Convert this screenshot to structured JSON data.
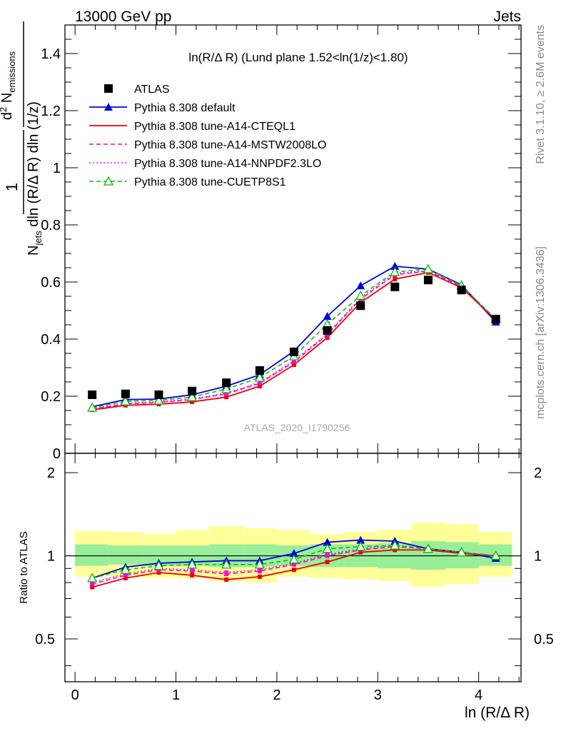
{
  "header": {
    "left": "13000 GeV pp",
    "right": "Jets",
    "side_top": "Rivet 3.1.10, ≥ 2.6M events",
    "side_bottom": "mcplots.cern.ch [arXiv:1306.3436]",
    "watermark": "ATLAS_2020_I1790256"
  },
  "chart_data": [
    {
      "type": "line",
      "panel": "main",
      "title": "ln(R/Δ R) (Lund plane 1.52<ln(1/z)<1.80)",
      "xlabel": "",
      "ylabel": "1/N_jets d²N_emissions / dln(R/Δ R) dln(1/z)",
      "xlim": [
        -0.1,
        4.42
      ],
      "ylim": [
        0,
        1.5
      ],
      "yticks": [
        "0",
        "0.2",
        "0.4",
        "0.6",
        "0.8",
        "1",
        "1.2",
        "1.4"
      ],
      "x": [
        0.17,
        0.5,
        0.83,
        1.16,
        1.5,
        1.83,
        2.17,
        2.5,
        2.83,
        3.17,
        3.5,
        3.83,
        4.17
      ],
      "legend_position": "top-left",
      "series": [
        {
          "name": "ATLAS",
          "color": "#000000",
          "marker": "square",
          "line": "none",
          "values": [
            0.205,
            0.208,
            0.205,
            0.218,
            0.247,
            0.29,
            0.355,
            0.43,
            0.517,
            0.583,
            0.607,
            0.572,
            0.47
          ]
        },
        {
          "name": "Pythia 8.308 default",
          "color": "#0000dd",
          "marker": "triangle",
          "line": "solid",
          "values": [
            0.163,
            0.188,
            0.19,
            0.205,
            0.235,
            0.275,
            0.358,
            0.48,
            0.587,
            0.655,
            0.645,
            0.59,
            0.46
          ]
        },
        {
          "name": "Pythia 8.308 tune-A14-CTEQL1",
          "color": "#ee0000",
          "marker": "square-small",
          "line": "solid",
          "values": [
            0.152,
            0.168,
            0.172,
            0.18,
            0.197,
            0.235,
            0.31,
            0.405,
            0.528,
            0.61,
            0.633,
            0.58,
            0.468
          ]
        },
        {
          "name": "Pythia 8.308 tune-A14-MSTW2008LO",
          "color": "#ee00aa",
          "marker": "square-small",
          "line": "dashed",
          "values": [
            0.155,
            0.173,
            0.178,
            0.188,
            0.208,
            0.245,
            0.32,
            0.415,
            0.54,
            0.625,
            0.638,
            0.585,
            0.47
          ]
        },
        {
          "name": "Pythia 8.308 tune-A14-NNPDF2.3LO",
          "color": "#ff00ee",
          "marker": "square-small",
          "line": "dotted",
          "values": [
            0.157,
            0.175,
            0.181,
            0.19,
            0.211,
            0.248,
            0.325,
            0.418,
            0.545,
            0.63,
            0.64,
            0.586,
            0.47
          ]
        },
        {
          "name": "Pythia 8.308 tune-CUETP8S1",
          "color": "#00bb00",
          "marker": "triangle-open",
          "line": "dashed",
          "values": [
            0.16,
            0.182,
            0.185,
            0.197,
            0.225,
            0.265,
            0.34,
            0.452,
            0.552,
            0.635,
            0.645,
            0.588,
            0.47
          ]
        }
      ]
    },
    {
      "type": "line",
      "panel": "ratio",
      "xlabel": "ln (R/Δ R)",
      "ylabel": "Ratio to ATLAS",
      "xlim": [
        -0.1,
        4.42
      ],
      "ylim": [
        0.35,
        2.35
      ],
      "log_y": true,
      "xticks": [
        "0",
        "1",
        "2",
        "3",
        "4"
      ],
      "yticks": [
        "0.5",
        "1",
        "2"
      ],
      "reference_line": 1,
      "x": [
        0.17,
        0.5,
        0.83,
        1.16,
        1.5,
        1.83,
        2.17,
        2.5,
        2.83,
        3.17,
        3.5,
        3.83,
        4.17
      ],
      "bin_edges": [
        0.0,
        0.33,
        0.67,
        1.0,
        1.33,
        1.67,
        2.0,
        2.33,
        2.67,
        3.0,
        3.33,
        3.67,
        4.0,
        4.33
      ],
      "band_outer": {
        "color": "#ffff99",
        "low": [
          0.84,
          0.84,
          0.83,
          0.83,
          0.81,
          0.8,
          0.84,
          0.83,
          0.82,
          0.81,
          0.77,
          0.79,
          0.84
        ],
        "high": [
          1.23,
          1.22,
          1.2,
          1.24,
          1.28,
          1.26,
          1.24,
          1.2,
          1.22,
          1.24,
          1.32,
          1.3,
          1.22
        ]
      },
      "band_inner": {
        "color": "#99ee99",
        "low": [
          0.92,
          0.93,
          0.92,
          0.92,
          0.91,
          0.91,
          0.92,
          0.91,
          0.91,
          0.9,
          0.89,
          0.9,
          0.92
        ],
        "high": [
          1.1,
          1.09,
          1.09,
          1.09,
          1.1,
          1.1,
          1.09,
          1.1,
          1.1,
          1.11,
          1.13,
          1.12,
          1.1
        ]
      },
      "series": [
        {
          "name": "Pythia 8.308 default",
          "color": "#0000dd",
          "marker": "triangle",
          "line": "solid",
          "values": [
            0.83,
            0.91,
            0.94,
            0.95,
            0.96,
            0.96,
            1.02,
            1.12,
            1.14,
            1.13,
            1.06,
            1.03,
            0.98
          ]
        },
        {
          "name": "Pythia 8.308 tune-A14-CTEQL1",
          "color": "#ee0000",
          "marker": "square-small",
          "line": "solid",
          "values": [
            0.77,
            0.83,
            0.87,
            0.85,
            0.82,
            0.84,
            0.89,
            0.95,
            1.03,
            1.05,
            1.05,
            1.02,
            1.0
          ]
        },
        {
          "name": "Pythia 8.308 tune-A14-MSTW2008LO",
          "color": "#ee00aa",
          "marker": "square-small",
          "line": "dashed",
          "values": [
            0.79,
            0.85,
            0.89,
            0.88,
            0.86,
            0.88,
            0.93,
            1.0,
            1.05,
            1.08,
            1.06,
            1.03,
            1.0
          ]
        },
        {
          "name": "Pythia 8.308 tune-A14-NNPDF2.3LO",
          "color": "#ff00ee",
          "marker": "square-small",
          "line": "dotted",
          "values": [
            0.8,
            0.86,
            0.9,
            0.89,
            0.87,
            0.89,
            0.94,
            1.01,
            1.06,
            1.09,
            1.06,
            1.03,
            1.0
          ]
        },
        {
          "name": "Pythia 8.308 tune-CUETP8S1",
          "color": "#00bb00",
          "marker": "triangle-open",
          "line": "dashed",
          "values": [
            0.83,
            0.89,
            0.92,
            0.93,
            0.93,
            0.93,
            0.97,
            1.06,
            1.08,
            1.09,
            1.06,
            1.03,
            1.0
          ]
        }
      ]
    }
  ]
}
